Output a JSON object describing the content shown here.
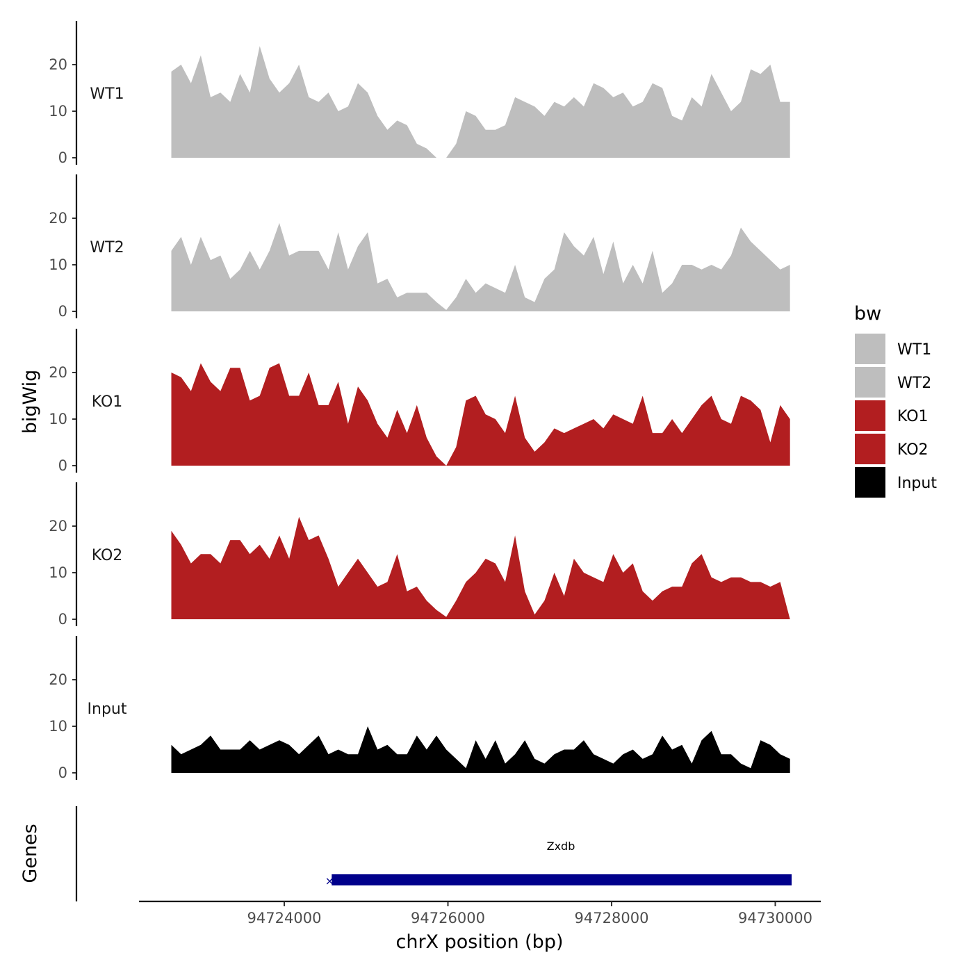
{
  "chart_data": {
    "type": "area",
    "ylabel": "bigWig",
    "xlabel": "chrX position (bp)",
    "x_range": [
      94722620,
      94730180
    ],
    "xlim": [
      94721750,
      94732100
    ],
    "x_ticks": [
      94724000,
      94726000,
      94728000,
      94730000
    ],
    "x_tick_labels": [
      "94724000",
      "94726000",
      "94728000",
      "94730000"
    ],
    "ylim": [
      0,
      28
    ],
    "y_ticks": [
      0,
      10,
      20
    ],
    "y_tick_labels": [
      "0",
      "10",
      "20"
    ],
    "legend": {
      "title": "bw",
      "position": "right",
      "entries": [
        {
          "label": "WT1",
          "color": "#BEBEBE"
        },
        {
          "label": "WT2",
          "color": "#BEBEBE"
        },
        {
          "label": "KO1",
          "color": "#B21E20"
        },
        {
          "label": "KO2",
          "color": "#B21E20"
        },
        {
          "label": "Input",
          "color": "#000000"
        }
      ]
    },
    "series": [
      {
        "name": "WT1",
        "color": "#BEBEBE",
        "values": [
          18.5,
          20,
          16,
          22,
          13,
          14,
          12,
          18,
          14,
          24,
          17,
          14,
          16,
          20,
          13,
          12,
          14,
          10,
          11,
          16,
          14,
          9,
          6,
          8,
          7,
          3,
          2,
          0,
          0,
          3,
          10,
          9,
          6,
          6,
          7,
          13,
          12,
          11,
          9,
          12,
          11,
          13,
          11,
          16,
          15,
          13,
          14,
          11,
          12,
          16,
          15,
          9,
          8,
          13,
          11,
          18,
          14,
          10,
          12,
          19,
          18,
          20,
          12,
          12
        ]
      },
      {
        "name": "WT2",
        "color": "#BEBEBE",
        "values": [
          13,
          16,
          10,
          16,
          11,
          12,
          7,
          9,
          13,
          9,
          13,
          19,
          12,
          13,
          13,
          13,
          9,
          17,
          9,
          14,
          17,
          6,
          7,
          3,
          4,
          4,
          4,
          2,
          0.3,
          3,
          7,
          4,
          6,
          5,
          4,
          10,
          3,
          2,
          7,
          9,
          17,
          14,
          12,
          16,
          8,
          15,
          6,
          10,
          6,
          13,
          4,
          6,
          10,
          10,
          9,
          10,
          9,
          12,
          18,
          15,
          13,
          11,
          9,
          10
        ]
      },
      {
        "name": "KO1",
        "color": "#B21E20",
        "values": [
          20,
          19,
          16,
          22,
          18,
          16,
          21,
          21,
          14,
          15,
          21,
          22,
          15,
          15,
          20,
          13,
          13,
          18,
          9,
          17,
          14,
          9,
          6,
          12,
          7,
          13,
          6,
          2,
          0,
          4,
          14,
          15,
          11,
          10,
          7,
          15,
          6,
          3,
          5,
          8,
          7,
          8,
          9,
          10,
          8,
          11,
          10,
          9,
          15,
          7,
          7,
          10,
          7,
          10,
          13,
          15,
          10,
          9,
          15,
          14,
          12,
          5,
          13,
          10
        ]
      },
      {
        "name": "KO2",
        "color": "#B21E20",
        "values": [
          19,
          16,
          12,
          14,
          14,
          12,
          17,
          17,
          14,
          16,
          13,
          18,
          13,
          22,
          17,
          18,
          13,
          7,
          10,
          13,
          10,
          7,
          8,
          14,
          6,
          7,
          4,
          2,
          0.5,
          4,
          8,
          10,
          13,
          12,
          8,
          18,
          6,
          1,
          4,
          10,
          5,
          13,
          10,
          9,
          8,
          14,
          10,
          12,
          6,
          4,
          6,
          7,
          7,
          12,
          14,
          9,
          8,
          9,
          9,
          8,
          8,
          7,
          8,
          0
        ]
      },
      {
        "name": "Input",
        "color": "#000000",
        "values": [
          6,
          4,
          5,
          6,
          8,
          5,
          5,
          5,
          7,
          5,
          6,
          7,
          6,
          4,
          6,
          8,
          4,
          5,
          4,
          4,
          10,
          5,
          6,
          4,
          4,
          8,
          5,
          8,
          5,
          3,
          1,
          7,
          3,
          7,
          2,
          4,
          7,
          3,
          2,
          4,
          5,
          5,
          7,
          4,
          3,
          2,
          4,
          5,
          3,
          4,
          8,
          5,
          6,
          2,
          7,
          9,
          4,
          4,
          2,
          1,
          7,
          6,
          4,
          3
        ]
      }
    ],
    "genes_track": {
      "label": "Genes",
      "genes": [
        {
          "name": "Zxdb",
          "start": 94724580,
          "end": 94730200,
          "strand": "-",
          "color": "#00008B"
        }
      ]
    }
  }
}
